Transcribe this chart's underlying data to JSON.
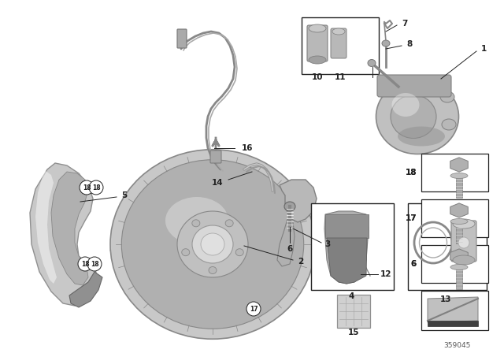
{
  "bg_color": "#ffffff",
  "fig_width": 6.4,
  "fig_height": 4.48,
  "dpi": 100,
  "part_number": "359045",
  "gray_light": "#d0d0d0",
  "gray_mid": "#a8a8a8",
  "gray_dark": "#707070",
  "gray_shield": "#b8b8b8",
  "line_color": "#222222",
  "label_font_size": 7.5
}
